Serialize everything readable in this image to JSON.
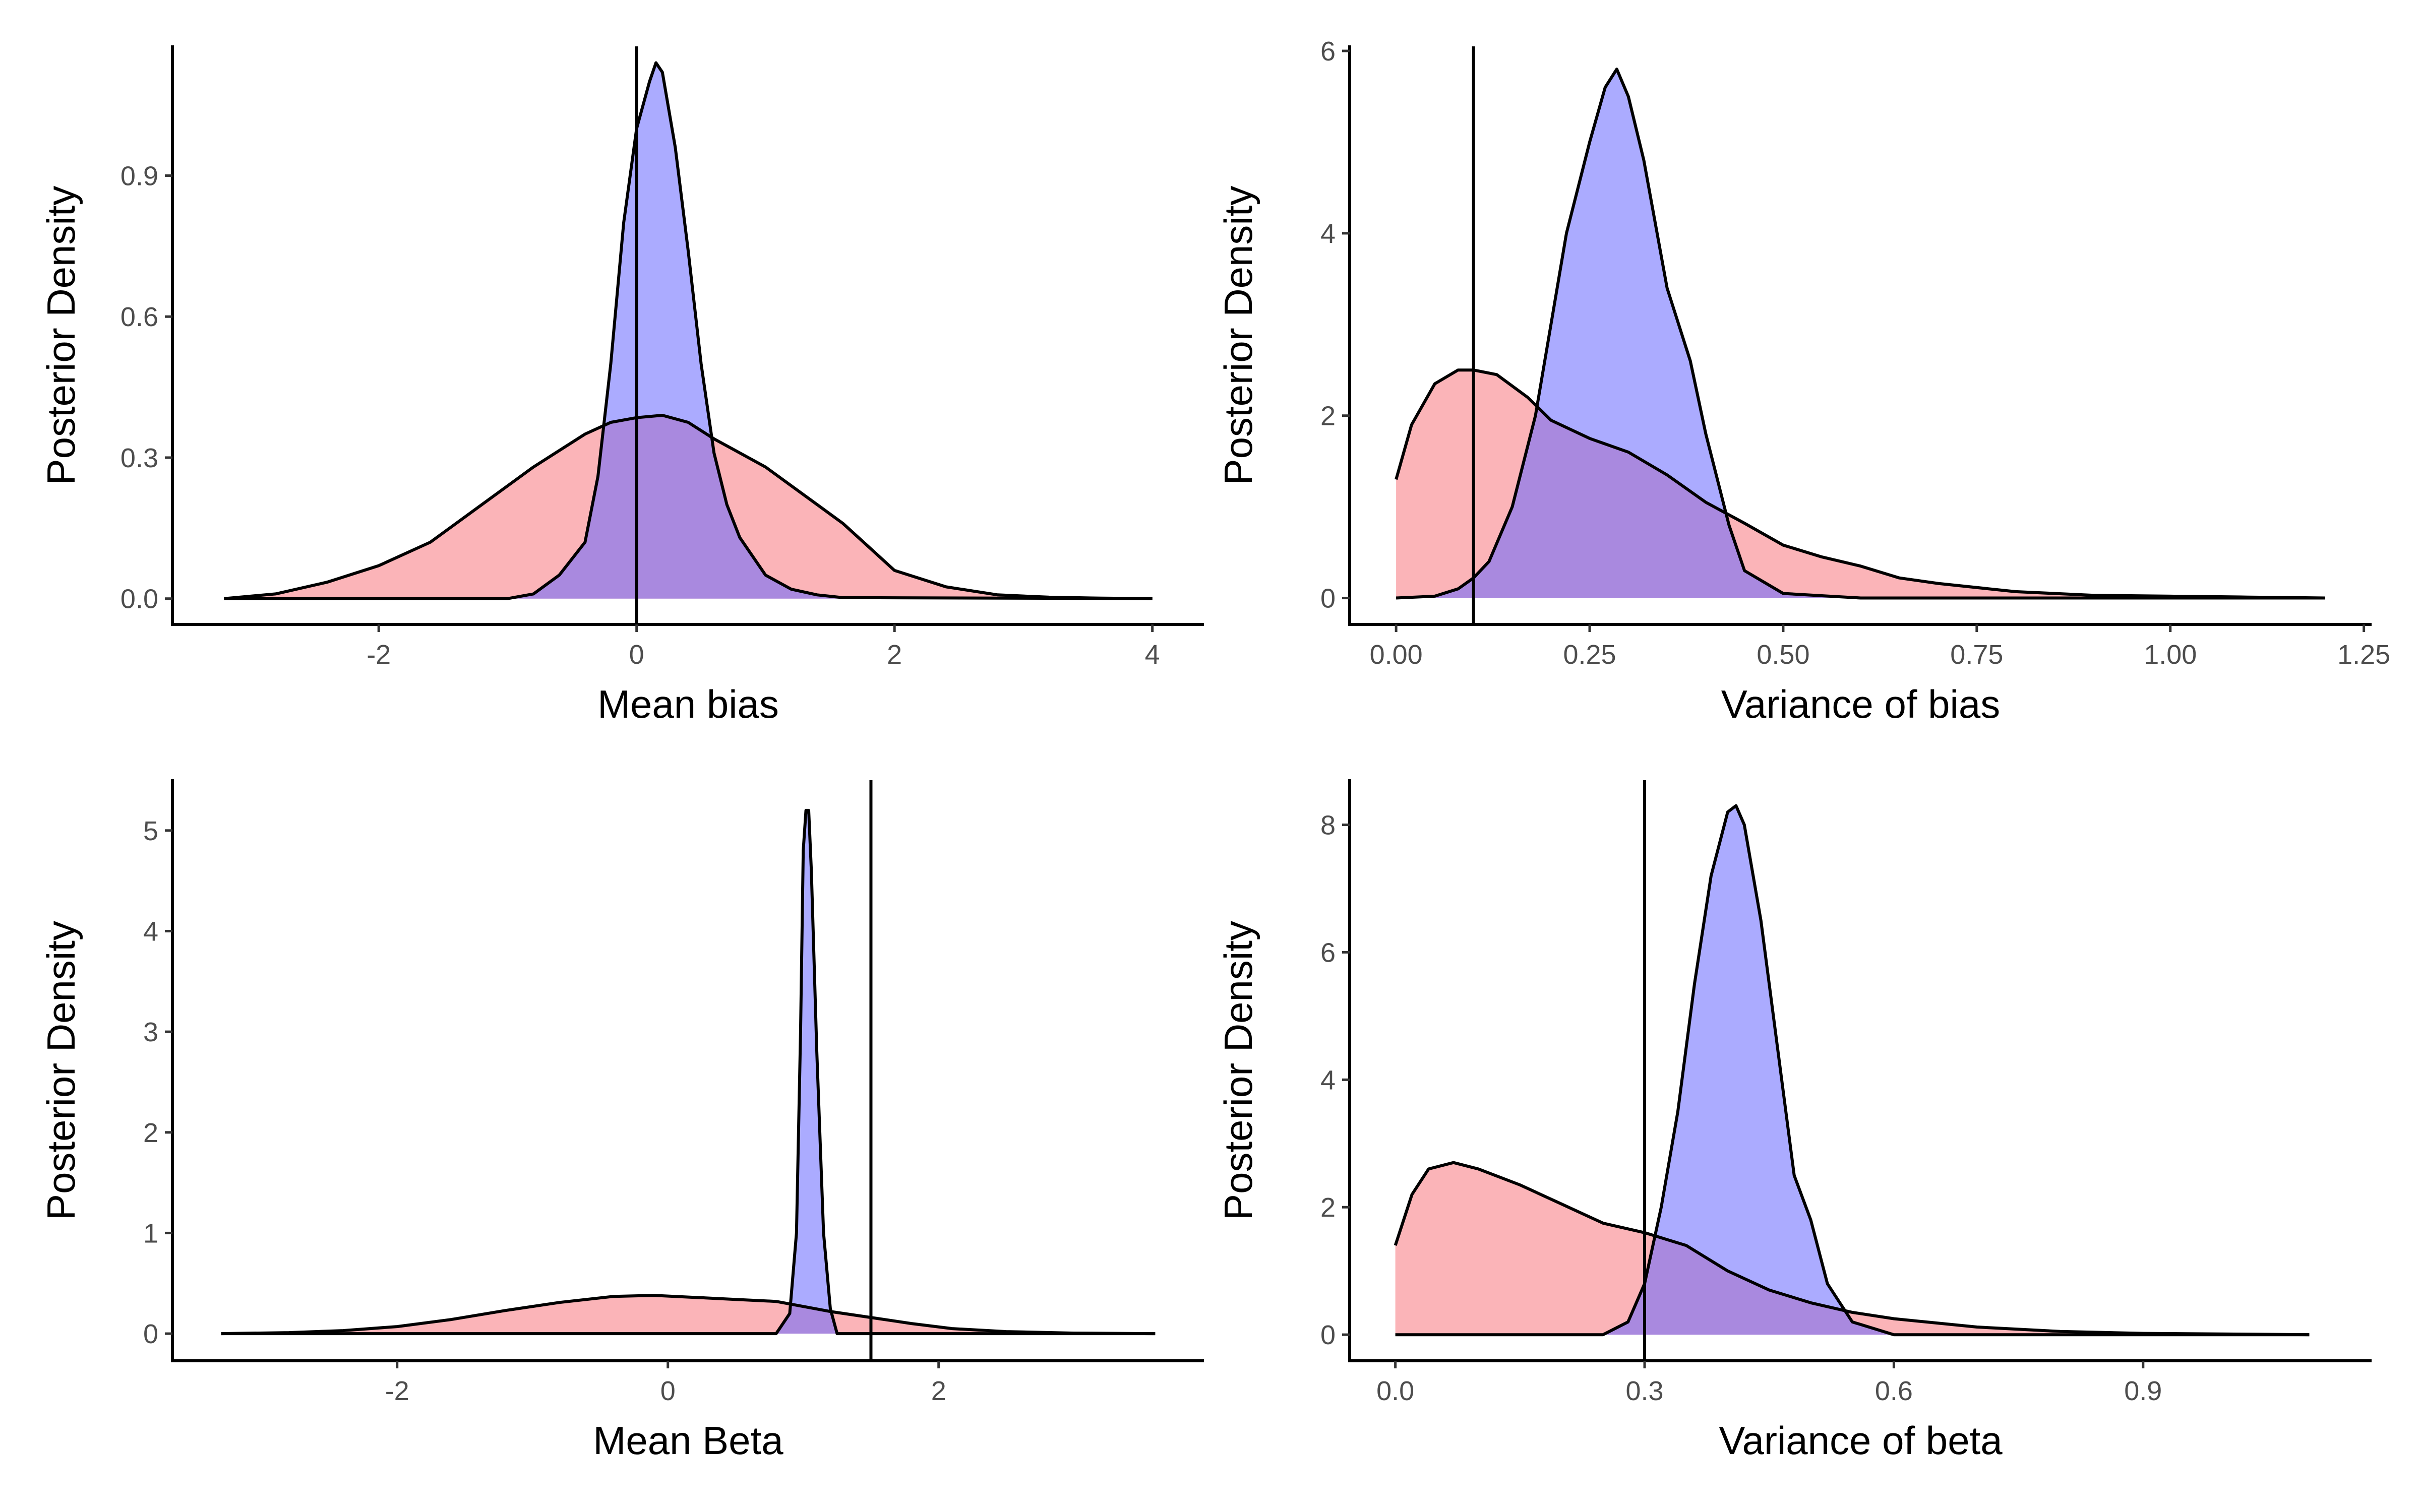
{
  "chart_data": [
    {
      "type": "area",
      "xlabel": "Mean bias",
      "ylabel": "Posterior Density",
      "xlim": [
        -3.6,
        4.4
      ],
      "ylim": [
        -0.055,
        1.175
      ],
      "xticks": [
        -2,
        0,
        2,
        4
      ],
      "xtick_labels": [
        "-2",
        "0",
        "2",
        "4"
      ],
      "yticks": [
        0.0,
        0.3,
        0.6,
        0.9
      ],
      "ytick_labels": [
        "0.0",
        "0.3",
        "0.6",
        "0.9"
      ],
      "vline": 0,
      "grid": false,
      "legend": "none",
      "series": [
        {
          "color": "#f8767d",
          "fill": "#fbb4b6",
          "x": [
            -3.2,
            -2.8,
            -2.4,
            -2.0,
            -1.6,
            -1.2,
            -0.8,
            -0.4,
            -0.2,
            0.0,
            0.2,
            0.4,
            0.6,
            0.8,
            1.0,
            1.2,
            1.4,
            1.6,
            1.8,
            2.0,
            2.4,
            2.8,
            3.2,
            3.6,
            4.0
          ],
          "y": [
            0.0,
            0.01,
            0.035,
            0.07,
            0.12,
            0.2,
            0.28,
            0.35,
            0.375,
            0.385,
            0.39,
            0.375,
            0.34,
            0.31,
            0.28,
            0.24,
            0.2,
            0.16,
            0.11,
            0.06,
            0.025,
            0.008,
            0.003,
            0.001,
            0.0
          ]
        },
        {
          "color": "#6666ff",
          "fill": "#b3b3fb",
          "x": [
            -3.2,
            -1.0,
            -0.8,
            -0.6,
            -0.4,
            -0.3,
            -0.2,
            -0.1,
            0.0,
            0.1,
            0.15,
            0.2,
            0.3,
            0.4,
            0.5,
            0.6,
            0.7,
            0.8,
            1.0,
            1.2,
            1.4,
            1.6,
            4.0
          ],
          "y": [
            0.0,
            0.0,
            0.01,
            0.05,
            0.12,
            0.26,
            0.5,
            0.8,
            1.0,
            1.1,
            1.14,
            1.12,
            0.96,
            0.74,
            0.5,
            0.31,
            0.2,
            0.13,
            0.05,
            0.02,
            0.008,
            0.002,
            0.0
          ]
        }
      ]
    },
    {
      "type": "area",
      "xlabel": "Variance of bias",
      "ylabel": "Posterior Density",
      "xlim": [
        -0.06,
        1.26
      ],
      "ylim": [
        -0.29,
        6.05
      ],
      "xticks": [
        0.0,
        0.25,
        0.5,
        0.75,
        1.0,
        1.25
      ],
      "xtick_labels": [
        "0.00",
        "0.25",
        "0.50",
        "0.75",
        "1.00",
        "1.25"
      ],
      "yticks": [
        0,
        2,
        4,
        6
      ],
      "ytick_labels": [
        "0",
        "2",
        "4",
        "6"
      ],
      "vline": 0.1,
      "grid": false,
      "legend": "none",
      "series": [
        {
          "color": "#f8767d",
          "fill": "#fbb4b6",
          "x": [
            0.0,
            0.02,
            0.05,
            0.08,
            0.1,
            0.13,
            0.17,
            0.2,
            0.25,
            0.3,
            0.35,
            0.4,
            0.45,
            0.5,
            0.55,
            0.6,
            0.65,
            0.7,
            0.8,
            0.9,
            1.0,
            1.1,
            1.2
          ],
          "y": [
            1.3,
            1.9,
            2.35,
            2.5,
            2.5,
            2.45,
            2.2,
            1.95,
            1.75,
            1.6,
            1.35,
            1.05,
            0.82,
            0.58,
            0.45,
            0.35,
            0.22,
            0.16,
            0.07,
            0.03,
            0.02,
            0.01,
            0.0
          ]
        },
        {
          "color": "#6666ff",
          "fill": "#b3b3fb",
          "x": [
            0.0,
            0.05,
            0.08,
            0.1,
            0.12,
            0.15,
            0.18,
            0.2,
            0.22,
            0.25,
            0.27,
            0.285,
            0.3,
            0.32,
            0.35,
            0.38,
            0.4,
            0.43,
            0.45,
            0.5,
            0.6,
            1.2
          ],
          "y": [
            0.0,
            0.02,
            0.1,
            0.22,
            0.4,
            1.0,
            2.0,
            3.0,
            4.0,
            5.0,
            5.6,
            5.8,
            5.5,
            4.8,
            3.4,
            2.6,
            1.8,
            0.8,
            0.3,
            0.05,
            0.0,
            0.0
          ]
        }
      ]
    },
    {
      "type": "area",
      "xlabel": "Mean Beta",
      "ylabel": "Posterior Density",
      "xlim": [
        -3.66,
        3.96
      ],
      "ylim": [
        -0.27,
        5.5
      ],
      "xticks": [
        -2,
        0,
        2
      ],
      "xtick_labels": [
        "-2",
        "0",
        "2"
      ],
      "yticks": [
        0,
        1,
        2,
        3,
        4,
        5
      ],
      "ytick_labels": [
        "0",
        "1",
        "2",
        "3",
        "4",
        "5"
      ],
      "vline": 1.5,
      "grid": false,
      "legend": "none",
      "series": [
        {
          "color": "#f8767d",
          "fill": "#fbb4b6",
          "x": [
            -3.3,
            -2.8,
            -2.4,
            -2.0,
            -1.6,
            -1.2,
            -0.8,
            -0.4,
            -0.1,
            0.2,
            0.5,
            0.8,
            1.0,
            1.2,
            1.5,
            1.8,
            2.1,
            2.5,
            3.0,
            3.6
          ],
          "y": [
            0.0,
            0.01,
            0.03,
            0.07,
            0.14,
            0.23,
            0.31,
            0.37,
            0.38,
            0.36,
            0.34,
            0.32,
            0.27,
            0.22,
            0.16,
            0.1,
            0.05,
            0.02,
            0.005,
            0.0
          ]
        },
        {
          "color": "#6666ff",
          "fill": "#b3b3fb",
          "x": [
            -3.3,
            0.8,
            0.9,
            0.95,
            0.98,
            1.0,
            1.02,
            1.04,
            1.06,
            1.1,
            1.15,
            1.2,
            1.25,
            3.6
          ],
          "y": [
            0.0,
            0.0,
            0.2,
            1.0,
            3.0,
            4.8,
            5.2,
            5.2,
            4.6,
            2.8,
            1.0,
            0.25,
            0.0,
            0.0
          ]
        }
      ]
    },
    {
      "type": "area",
      "xlabel": "Variance of beta",
      "ylabel": "Posterior Density",
      "xlim": [
        -0.055,
        1.175
      ],
      "ylim": [
        -0.41,
        8.7
      ],
      "xticks": [
        0.0,
        0.3,
        0.6,
        0.9
      ],
      "xtick_labels": [
        "0.0",
        "0.3",
        "0.6",
        "0.9"
      ],
      "yticks": [
        0,
        2,
        4,
        6,
        8
      ],
      "ytick_labels": [
        "0",
        "2",
        "4",
        "6",
        "8"
      ],
      "vline": 0.3,
      "grid": false,
      "legend": "none",
      "series": [
        {
          "color": "#f8767d",
          "fill": "#fbb4b6",
          "x": [
            0.0,
            0.02,
            0.04,
            0.07,
            0.1,
            0.15,
            0.2,
            0.25,
            0.3,
            0.35,
            0.4,
            0.45,
            0.5,
            0.55,
            0.6,
            0.7,
            0.8,
            0.9,
            1.0,
            1.1
          ],
          "y": [
            1.4,
            2.2,
            2.6,
            2.7,
            2.6,
            2.35,
            2.05,
            1.75,
            1.6,
            1.4,
            1.0,
            0.7,
            0.5,
            0.35,
            0.25,
            0.12,
            0.05,
            0.02,
            0.01,
            0.0
          ]
        },
        {
          "color": "#6666ff",
          "fill": "#b3b3fb",
          "x": [
            0.0,
            0.25,
            0.28,
            0.3,
            0.32,
            0.34,
            0.36,
            0.38,
            0.4,
            0.41,
            0.42,
            0.44,
            0.46,
            0.48,
            0.5,
            0.52,
            0.55,
            0.6,
            1.1
          ],
          "y": [
            0.0,
            0.0,
            0.2,
            0.8,
            2.0,
            3.5,
            5.5,
            7.2,
            8.2,
            8.3,
            8.0,
            6.5,
            4.5,
            2.5,
            1.8,
            0.8,
            0.2,
            0.0,
            0.0
          ]
        }
      ]
    }
  ]
}
